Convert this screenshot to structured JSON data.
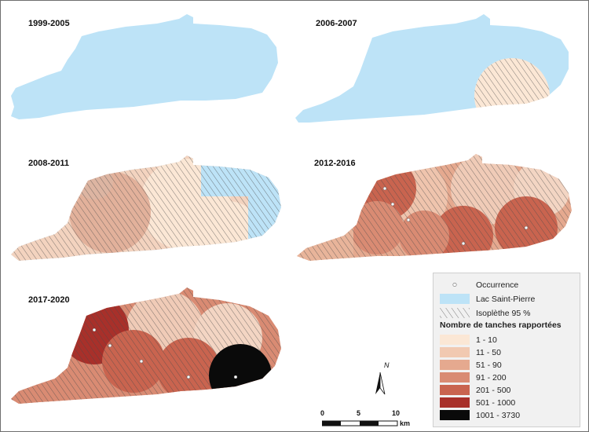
{
  "panels": [
    {
      "label": "1999-2005"
    },
    {
      "label": "2006-2007"
    },
    {
      "label": "2008-2011"
    },
    {
      "label": "2012-2016"
    },
    {
      "label": "2017-2020"
    }
  ],
  "legend": {
    "occurrence": "Occurrence",
    "lake": "Lac Saint-Pierre",
    "isopleth": "Isoplèthe 95 %",
    "title": "Nombre de tanches rapportées",
    "classes": [
      {
        "label": "1 - 10",
        "color": "#fbe7d5"
      },
      {
        "label": "11 - 50",
        "color": "#f1c9b1"
      },
      {
        "label": "51 - 90",
        "color": "#e5a98f"
      },
      {
        "label": "91 - 200",
        "color": "#d98b73"
      },
      {
        "label": "201 - 500",
        "color": "#c9644f"
      },
      {
        "label": "501 - 1000",
        "color": "#a8302a"
      },
      {
        "label": "1001 - 3730",
        "color": "#0a0a0a"
      }
    ]
  },
  "colors": {
    "lake": "#bde3f7",
    "hatch": "#555555",
    "occurrence": "#ffffff"
  },
  "north": {
    "label": "N"
  },
  "scale": {
    "ticks": [
      "0",
      "5",
      "10"
    ],
    "unit": "km"
  }
}
